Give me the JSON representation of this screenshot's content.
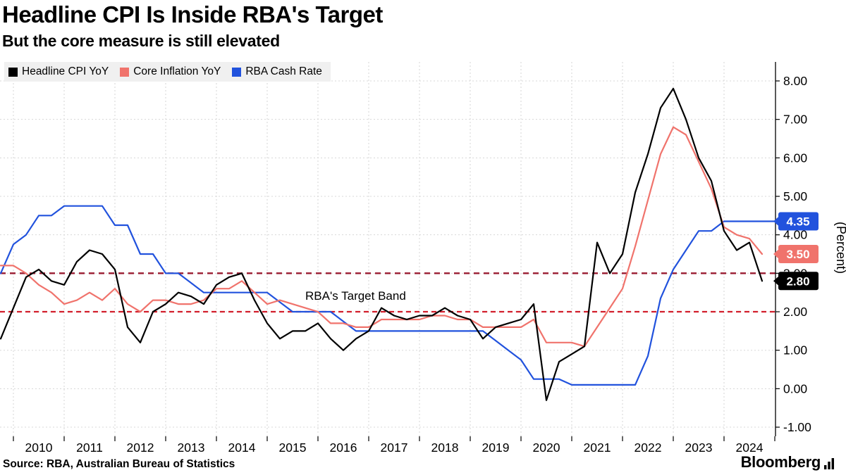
{
  "header": {
    "title": "Headline CPI Is Inside RBA's Target",
    "subtitle": "But the core measure is still elevated"
  },
  "legend": {
    "items": [
      {
        "label": "Headline CPI YoY",
        "color": "#000000"
      },
      {
        "label": "Core Inflation YoY",
        "color": "#f0736c"
      },
      {
        "label": "RBA Cash Rate",
        "color": "#2152dd"
      }
    ]
  },
  "chart_data": {
    "type": "line",
    "title": "Headline CPI Is Inside RBA's Target",
    "subtitle": "But the core measure is still elevated",
    "xlabel": "",
    "ylabel": "(Percent)",
    "ylim": [
      -1.25,
      8.5
    ],
    "xlim": [
      2009.7,
      2025.05
    ],
    "grid": true,
    "legend_position": "top-left",
    "yticks": [
      8,
      7,
      6,
      5,
      4,
      3,
      2,
      1,
      0,
      -1
    ],
    "ytick_labels": [
      "8.00",
      "7.00",
      "6.00",
      "5.00",
      "4.00",
      "3.00",
      "2.00",
      "1.00",
      "0.00",
      "-1.00"
    ],
    "x_tick_years": [
      "2010",
      "2011",
      "2012",
      "2013",
      "2014",
      "2015",
      "2016",
      "2017",
      "2018",
      "2019",
      "2020",
      "2021",
      "2022",
      "2023",
      "2024"
    ],
    "x_start": 2009.75,
    "x_step": 0.25,
    "band": {
      "low": 2.0,
      "high": 3.0,
      "low_color": "#d21f2c",
      "high_color": "#9a1b30",
      "label": "RBA's Target Band",
      "label_x": 2015.75,
      "label_y": 2.42
    },
    "series": [
      {
        "name": "Headline CPI YoY",
        "color": "#000000",
        "values": [
          1.3,
          2.1,
          2.9,
          3.1,
          2.8,
          2.7,
          3.3,
          3.6,
          3.5,
          3.1,
          1.6,
          1.2,
          2.0,
          2.2,
          2.5,
          2.4,
          2.2,
          2.7,
          2.9,
          3.0,
          2.3,
          1.7,
          1.3,
          1.5,
          1.5,
          1.7,
          1.3,
          1.0,
          1.3,
          1.5,
          2.1,
          1.9,
          1.8,
          1.9,
          1.9,
          2.1,
          1.9,
          1.8,
          1.3,
          1.6,
          1.7,
          1.8,
          2.2,
          -0.3,
          0.7,
          0.9,
          1.1,
          3.8,
          3.0,
          3.5,
          5.1,
          6.1,
          7.3,
          7.8,
          7.0,
          6.0,
          5.4,
          4.1,
          3.6,
          3.8,
          2.8
        ]
      },
      {
        "name": "Core Inflation YoY",
        "color": "#f0736c",
        "values": [
          3.2,
          3.2,
          3.0,
          2.7,
          2.5,
          2.2,
          2.3,
          2.5,
          2.3,
          2.6,
          2.2,
          2.0,
          2.3,
          2.3,
          2.2,
          2.2,
          2.3,
          2.6,
          2.6,
          2.8,
          2.5,
          2.2,
          2.3,
          2.2,
          2.1,
          2.0,
          1.7,
          1.7,
          1.6,
          1.6,
          1.8,
          1.8,
          1.8,
          1.8,
          1.9,
          1.9,
          1.8,
          1.8,
          1.6,
          1.6,
          1.6,
          1.6,
          1.8,
          1.2,
          1.2,
          1.2,
          1.1,
          1.6,
          2.1,
          2.6,
          3.7,
          4.9,
          6.1,
          6.8,
          6.6,
          5.9,
          5.2,
          4.2,
          4.0,
          3.9,
          3.5
        ]
      },
      {
        "name": "RBA Cash Rate",
        "color": "#2152dd",
        "values": [
          3.0,
          3.75,
          4.0,
          4.5,
          4.5,
          4.75,
          4.75,
          4.75,
          4.75,
          4.25,
          4.25,
          3.5,
          3.5,
          3.0,
          3.0,
          2.75,
          2.5,
          2.5,
          2.5,
          2.5,
          2.5,
          2.5,
          2.25,
          2.0,
          2.0,
          2.0,
          2.0,
          1.75,
          1.5,
          1.5,
          1.5,
          1.5,
          1.5,
          1.5,
          1.5,
          1.5,
          1.5,
          1.5,
          1.5,
          1.25,
          1.0,
          0.75,
          0.25,
          0.25,
          0.25,
          0.1,
          0.1,
          0.1,
          0.1,
          0.1,
          0.1,
          0.85,
          2.35,
          3.1,
          3.6,
          4.1,
          4.1,
          4.35,
          4.35,
          4.35,
          4.35,
          4.35
        ]
      }
    ],
    "end_labels": [
      {
        "value": "4.35",
        "color": "#2152dd",
        "text_color": "#ffffff"
      },
      {
        "value": "3.50",
        "color": "#f0736c",
        "text_color": "#ffffff"
      },
      {
        "value": "2.80",
        "color": "#000000",
        "text_color": "#ffffff"
      }
    ]
  },
  "footer": {
    "source": "Source: RBA, Australian Bureau of Statistics",
    "brand": "Bloomberg"
  }
}
